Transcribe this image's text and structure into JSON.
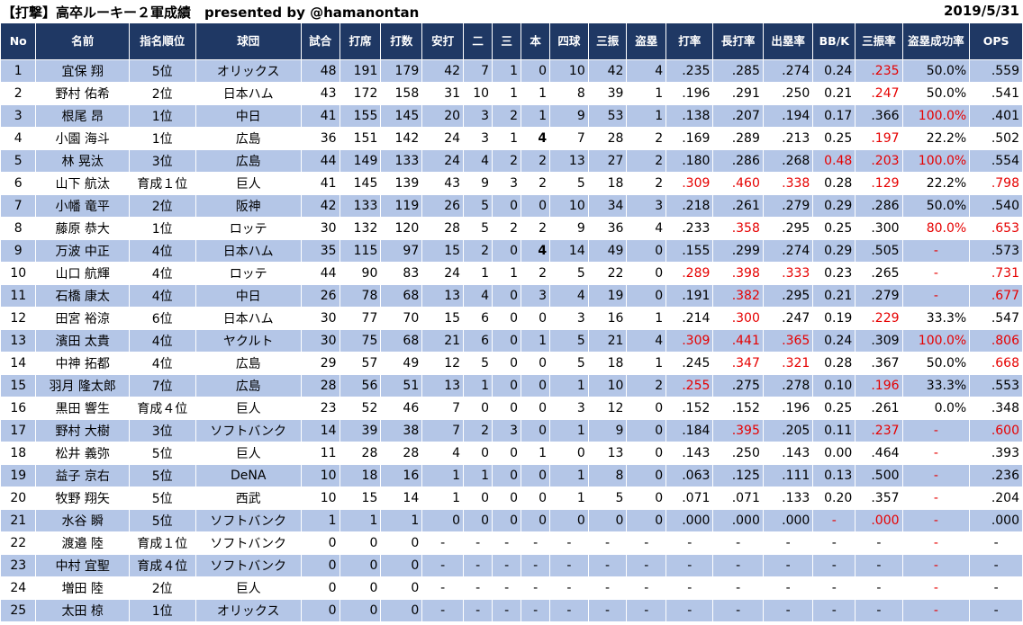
{
  "title": "【打撃】高卒ルーキー２軍成績　presented by @hamanontan",
  "date": "2019/5/31",
  "columns": [
    "No",
    "名前",
    "指名順位",
    "球団",
    "試合",
    "打席",
    "打数",
    "安打",
    "二",
    "三",
    "本",
    "四球",
    "三振",
    "盗塁",
    "打率",
    "長打率",
    "出塁率",
    "BB/K",
    "三振率",
    "盗塁成功率",
    "OPS"
  ],
  "red_marks": [
    [
      0,
      0,
      0,
      0,
      0,
      0,
      0,
      0,
      0,
      0,
      0,
      0,
      0,
      0,
      0,
      0,
      0,
      0,
      1,
      0,
      0
    ],
    [
      0,
      0,
      0,
      0,
      0,
      0,
      0,
      0,
      0,
      0,
      0,
      0,
      0,
      0,
      0,
      0,
      0,
      0,
      1,
      0,
      0
    ],
    [
      0,
      0,
      0,
      0,
      0,
      0,
      0,
      0,
      0,
      0,
      0,
      0,
      0,
      0,
      0,
      0,
      0,
      0,
      0,
      1,
      0
    ],
    [
      0,
      0,
      0,
      0,
      0,
      0,
      0,
      0,
      0,
      0,
      0,
      0,
      0,
      0,
      0,
      0,
      0,
      0,
      1,
      0,
      0
    ],
    [
      0,
      0,
      0,
      0,
      0,
      0,
      0,
      0,
      0,
      0,
      0,
      0,
      0,
      0,
      0,
      0,
      0,
      1,
      1,
      1,
      0
    ],
    [
      0,
      0,
      0,
      0,
      0,
      0,
      0,
      0,
      0,
      0,
      0,
      0,
      0,
      0,
      1,
      1,
      1,
      0,
      1,
      0,
      1
    ],
    [
      0,
      0,
      0,
      0,
      0,
      0,
      0,
      0,
      0,
      0,
      0,
      0,
      0,
      0,
      0,
      0,
      0,
      0,
      0,
      0,
      0
    ],
    [
      0,
      0,
      0,
      0,
      0,
      0,
      0,
      0,
      0,
      0,
      0,
      0,
      0,
      0,
      0,
      1,
      0,
      0,
      0,
      1,
      1
    ],
    [
      0,
      0,
      0,
      0,
      0,
      0,
      0,
      0,
      0,
      0,
      0,
      0,
      0,
      0,
      0,
      0,
      0,
      0,
      0,
      1,
      0
    ],
    [
      0,
      0,
      0,
      0,
      0,
      0,
      0,
      0,
      0,
      0,
      0,
      0,
      0,
      0,
      1,
      1,
      1,
      0,
      0,
      1,
      1
    ],
    [
      0,
      0,
      0,
      0,
      0,
      0,
      0,
      0,
      0,
      0,
      0,
      0,
      0,
      0,
      0,
      1,
      0,
      0,
      0,
      1,
      1
    ],
    [
      0,
      0,
      0,
      0,
      0,
      0,
      0,
      0,
      0,
      0,
      0,
      0,
      0,
      0,
      0,
      1,
      0,
      0,
      1,
      0,
      0
    ],
    [
      0,
      0,
      0,
      0,
      0,
      0,
      0,
      0,
      0,
      0,
      0,
      0,
      0,
      0,
      1,
      1,
      1,
      0,
      0,
      1,
      1
    ],
    [
      0,
      0,
      0,
      0,
      0,
      0,
      0,
      0,
      0,
      0,
      0,
      0,
      0,
      0,
      0,
      1,
      1,
      0,
      0,
      0,
      1
    ],
    [
      0,
      0,
      0,
      0,
      0,
      0,
      0,
      0,
      0,
      0,
      0,
      0,
      0,
      0,
      1,
      0,
      0,
      0,
      1,
      0,
      0
    ],
    [
      0,
      0,
      0,
      0,
      0,
      0,
      0,
      0,
      0,
      0,
      0,
      0,
      0,
      0,
      0,
      0,
      0,
      0,
      0,
      0,
      0
    ],
    [
      0,
      0,
      0,
      0,
      0,
      0,
      0,
      0,
      0,
      0,
      0,
      0,
      0,
      0,
      0,
      1,
      0,
      0,
      1,
      1,
      1
    ],
    [
      0,
      0,
      0,
      0,
      0,
      0,
      0,
      0,
      0,
      0,
      0,
      0,
      0,
      0,
      0,
      0,
      0,
      0,
      0,
      1,
      0
    ],
    [
      0,
      0,
      0,
      0,
      0,
      0,
      0,
      0,
      0,
      0,
      0,
      0,
      0,
      0,
      0,
      0,
      0,
      0,
      0,
      1,
      0
    ],
    [
      0,
      0,
      0,
      0,
      0,
      0,
      0,
      0,
      0,
      0,
      0,
      0,
      0,
      0,
      0,
      0,
      0,
      0,
      0,
      1,
      0
    ],
    [
      0,
      0,
      0,
      0,
      0,
      0,
      0,
      0,
      0,
      0,
      0,
      0,
      0,
      0,
      0,
      0,
      0,
      1,
      1,
      1,
      0
    ],
    [
      0,
      0,
      0,
      0,
      0,
      0,
      0,
      0,
      0,
      0,
      0,
      0,
      0,
      0,
      0,
      0,
      0,
      0,
      0,
      1,
      0
    ],
    [
      0,
      0,
      0,
      0,
      0,
      0,
      0,
      0,
      0,
      0,
      0,
      0,
      0,
      0,
      0,
      0,
      0,
      0,
      0,
      1,
      0
    ],
    [
      0,
      0,
      0,
      0,
      0,
      0,
      0,
      0,
      0,
      0,
      0,
      0,
      0,
      0,
      0,
      0,
      0,
      0,
      0,
      1,
      0
    ],
    [
      0,
      0,
      0,
      0,
      0,
      0,
      0,
      0,
      0,
      0,
      0,
      0,
      0,
      0,
      0,
      0,
      0,
      0,
      0,
      1,
      0
    ]
  ],
  "rows": [
    [
      "1",
      "宜保 翔",
      "5位",
      "オリックス",
      "48",
      "191",
      "179",
      "42",
      "7",
      "1",
      "0",
      "10",
      "42",
      "4",
      ".235",
      ".285",
      ".274",
      "0.24",
      ".235",
      "50.0%",
      ".559"
    ],
    [
      "2",
      "野村 佑希",
      "2位",
      "日本ハム",
      "43",
      "172",
      "158",
      "31",
      "10",
      "1",
      "1",
      "8",
      "39",
      "1",
      ".196",
      ".291",
      ".250",
      "0.21",
      ".247",
      "50.0%",
      ".541"
    ],
    [
      "3",
      "根尾 昂",
      "1位",
      "中日",
      "41",
      "155",
      "145",
      "20",
      "3",
      "2",
      "1",
      "9",
      "53",
      "1",
      ".138",
      ".207",
      ".194",
      "0.17",
      ".366",
      "100.0%",
      ".401"
    ],
    [
      "4",
      "小園 海斗",
      "1位",
      "広島",
      "36",
      "151",
      "142",
      "24",
      "3",
      "1",
      "4",
      "7",
      "28",
      "2",
      ".169",
      ".289",
      ".213",
      "0.25",
      ".197",
      "22.2%",
      ".502"
    ],
    [
      "5",
      "林 晃汰",
      "3位",
      "広島",
      "44",
      "149",
      "133",
      "24",
      "4",
      "2",
      "2",
      "13",
      "27",
      "2",
      ".180",
      ".286",
      ".268",
      "0.48",
      ".203",
      "100.0%",
      ".554"
    ],
    [
      "6",
      "山下 航汰",
      "育成１位",
      "巨人",
      "41",
      "145",
      "139",
      "43",
      "9",
      "3",
      "2",
      "5",
      "18",
      "2",
      ".309",
      ".460",
      ".338",
      "0.28",
      ".129",
      "22.2%",
      ".798"
    ],
    [
      "7",
      "小幡 竜平",
      "2位",
      "阪神",
      "42",
      "133",
      "119",
      "26",
      "5",
      "0",
      "0",
      "10",
      "34",
      "3",
      ".218",
      ".261",
      ".279",
      "0.29",
      ".286",
      "50.0%",
      ".540"
    ],
    [
      "8",
      "藤原 恭大",
      "1位",
      "ロッテ",
      "30",
      "132",
      "120",
      "28",
      "5",
      "2",
      "2",
      "9",
      "36",
      "4",
      ".233",
      ".358",
      ".295",
      "0.25",
      ".300",
      "80.0%",
      ".653"
    ],
    [
      "9",
      "万波 中正",
      "4位",
      "日本ハム",
      "35",
      "115",
      "97",
      "15",
      "2",
      "0",
      "4",
      "14",
      "49",
      "0",
      ".155",
      ".299",
      ".274",
      "0.29",
      ".505",
      "-",
      ".573"
    ],
    [
      "10",
      "山口 航輝",
      "4位",
      "ロッテ",
      "44",
      "90",
      "83",
      "24",
      "1",
      "1",
      "2",
      "5",
      "22",
      "0",
      ".289",
      ".398",
      ".333",
      "0.23",
      ".265",
      "-",
      ".731"
    ],
    [
      "11",
      "石橋 康太",
      "4位",
      "中日",
      "26",
      "78",
      "68",
      "13",
      "4",
      "0",
      "3",
      "4",
      "19",
      "0",
      ".191",
      ".382",
      ".295",
      "0.21",
      ".279",
      "-",
      ".677"
    ],
    [
      "12",
      "田宮 裕涼",
      "6位",
      "日本ハム",
      "30",
      "77",
      "70",
      "15",
      "6",
      "0",
      "0",
      "3",
      "16",
      "1",
      ".214",
      ".300",
      ".247",
      "0.19",
      ".229",
      "33.3%",
      ".547"
    ],
    [
      "13",
      "濱田 太貴",
      "4位",
      "ヤクルト",
      "30",
      "75",
      "68",
      "21",
      "6",
      "0",
      "1",
      "5",
      "21",
      "4",
      ".309",
      ".441",
      ".365",
      "0.24",
      ".309",
      "100.0%",
      ".806"
    ],
    [
      "14",
      "中神 拓都",
      "4位",
      "広島",
      "29",
      "57",
      "49",
      "12",
      "5",
      "0",
      "0",
      "5",
      "18",
      "1",
      ".245",
      ".347",
      ".321",
      "0.28",
      ".367",
      "50.0%",
      ".668"
    ],
    [
      "15",
      "羽月 隆太郎",
      "7位",
      "広島",
      "28",
      "56",
      "51",
      "13",
      "1",
      "0",
      "0",
      "1",
      "10",
      "2",
      ".255",
      ".275",
      ".278",
      "0.10",
      ".196",
      "33.3%",
      ".553"
    ],
    [
      "16",
      "黒田 響生",
      "育成４位",
      "巨人",
      "23",
      "52",
      "46",
      "7",
      "0",
      "0",
      "0",
      "3",
      "12",
      "0",
      ".152",
      ".152",
      ".196",
      "0.25",
      ".261",
      "0.0%",
      ".348"
    ],
    [
      "17",
      "野村 大樹",
      "3位",
      "ソフトバンク",
      "14",
      "39",
      "38",
      "7",
      "2",
      "3",
      "0",
      "1",
      "9",
      "0",
      ".184",
      ".395",
      ".205",
      "0.11",
      ".237",
      "-",
      ".600"
    ],
    [
      "18",
      "松井 義弥",
      "5位",
      "巨人",
      "11",
      "28",
      "28",
      "4",
      "0",
      "0",
      "1",
      "0",
      "13",
      "0",
      ".143",
      ".250",
      ".143",
      "0.00",
      ".464",
      "-",
      ".393"
    ],
    [
      "19",
      "益子 京右",
      "5位",
      "DeNA",
      "10",
      "18",
      "16",
      "1",
      "1",
      "0",
      "0",
      "1",
      "8",
      "0",
      ".063",
      ".125",
      ".111",
      "0.13",
      ".500",
      "-",
      ".236"
    ],
    [
      "20",
      "牧野 翔矢",
      "5位",
      "西武",
      "10",
      "15",
      "14",
      "1",
      "0",
      "0",
      "0",
      "1",
      "5",
      "0",
      ".071",
      ".071",
      ".133",
      "0.20",
      ".357",
      "-",
      ".204"
    ],
    [
      "21",
      "水谷 瞬",
      "5位",
      "ソフトバンク",
      "1",
      "1",
      "1",
      "0",
      "0",
      "0",
      "0",
      "0",
      "0",
      "0",
      ".000",
      ".000",
      ".000",
      "-",
      ".000",
      "-",
      ".000"
    ],
    [
      "22",
      "渡邉 陸",
      "育成１位",
      "ソフトバンク",
      "0",
      "0",
      "0",
      "-",
      "-",
      "-",
      "-",
      "-",
      "-",
      "-",
      "-",
      "-",
      "-",
      "-",
      "-",
      "-",
      "-"
    ],
    [
      "23",
      "中村 宜聖",
      "育成４位",
      "ソフトバンク",
      "0",
      "0",
      "0",
      "-",
      "-",
      "-",
      "-",
      "-",
      "-",
      "-",
      "-",
      "-",
      "-",
      "-",
      "-",
      "-",
      "-"
    ],
    [
      "24",
      "増田 陸",
      "2位",
      "巨人",
      "0",
      "0",
      "0",
      "-",
      "-",
      "-",
      "-",
      "-",
      "-",
      "-",
      "-",
      "-",
      "-",
      "-",
      "-",
      "-",
      "-"
    ],
    [
      "25",
      "太田 椋",
      "1位",
      "オリックス",
      "0",
      "0",
      "0",
      "-",
      "-",
      "-",
      "-",
      "-",
      "-",
      "-",
      "-",
      "-",
      "-",
      "-",
      "-",
      "-",
      "-"
    ]
  ],
  "bold_cells": [
    [
      3,
      10
    ],
    [
      8,
      10
    ]
  ]
}
